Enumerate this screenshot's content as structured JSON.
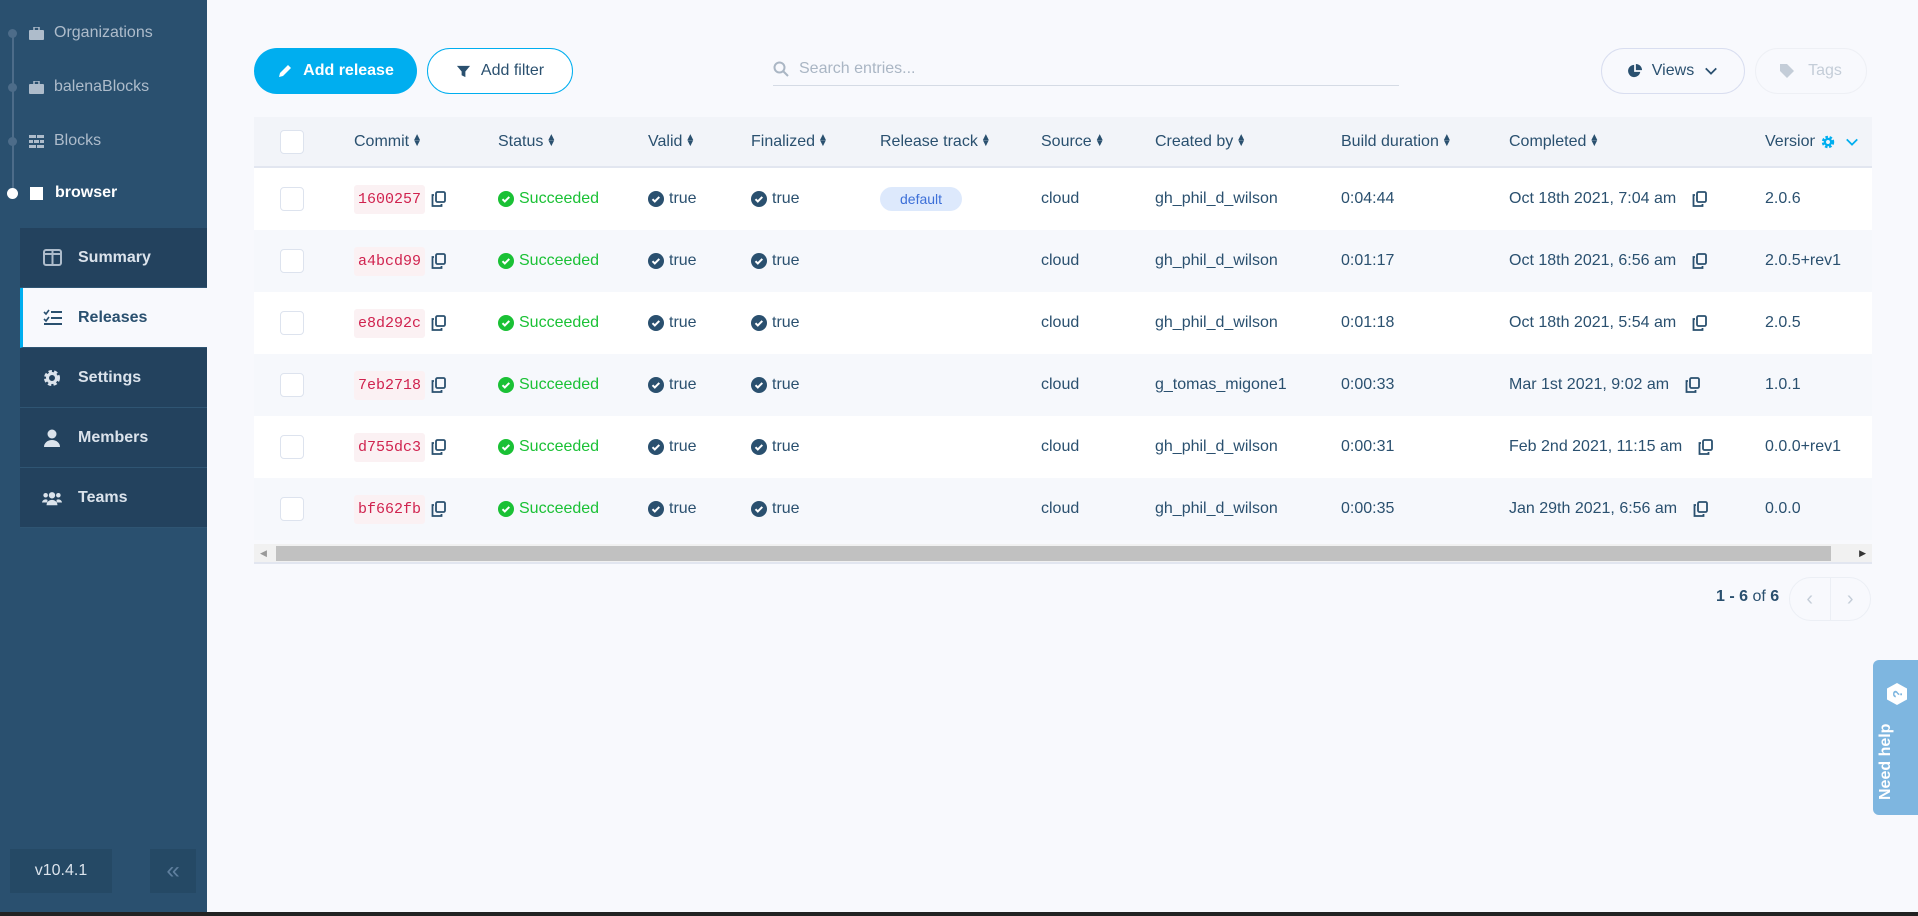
{
  "sidebar": {
    "breadcrumbs": [
      {
        "label": "Organizations",
        "icon": "briefcase-icon"
      },
      {
        "label": "balenaBlocks",
        "icon": "briefcase-icon"
      },
      {
        "label": "Blocks",
        "icon": "blocks-icon"
      },
      {
        "label": "browser",
        "icon": "square-icon",
        "active": true
      }
    ],
    "nav": [
      {
        "label": "Summary",
        "icon": "columns-icon"
      },
      {
        "label": "Releases",
        "icon": "list-check-icon",
        "active": true
      },
      {
        "label": "Settings",
        "icon": "gear-icon"
      },
      {
        "label": "Members",
        "icon": "user-icon"
      },
      {
        "label": "Teams",
        "icon": "users-icon"
      }
    ],
    "version": "v10.4.1",
    "collapse_icon": "chevrons-left-icon"
  },
  "toolbar": {
    "add_release": "Add release",
    "add_filter": "Add filter",
    "search_placeholder": "Search entries...",
    "views": "Views",
    "tags": "Tags"
  },
  "table": {
    "columns": [
      "Commit",
      "Status",
      "Valid",
      "Finalized",
      "Release track",
      "Source",
      "Created by",
      "Build duration",
      "Completed",
      "Version"
    ],
    "rows": [
      {
        "commit": "1600257",
        "status": "Succeeded",
        "valid": "true",
        "finalized": "true",
        "track": "default",
        "source": "cloud",
        "created_by": "gh_phil_d_wilson",
        "duration": "0:04:44",
        "completed": "Oct 18th 2021, 7:04 am",
        "version": "2.0.6"
      },
      {
        "commit": "a4bcd99",
        "status": "Succeeded",
        "valid": "true",
        "finalized": "true",
        "track": "",
        "source": "cloud",
        "created_by": "gh_phil_d_wilson",
        "duration": "0:01:17",
        "completed": "Oct 18th 2021, 6:56 am",
        "version": "2.0.5+rev1"
      },
      {
        "commit": "e8d292c",
        "status": "Succeeded",
        "valid": "true",
        "finalized": "true",
        "track": "",
        "source": "cloud",
        "created_by": "gh_phil_d_wilson",
        "duration": "0:01:18",
        "completed": "Oct 18th 2021, 5:54 am",
        "version": "2.0.5"
      },
      {
        "commit": "7eb2718",
        "status": "Succeeded",
        "valid": "true",
        "finalized": "true",
        "track": "",
        "source": "cloud",
        "created_by": "g_tomas_migone1",
        "duration": "0:00:33",
        "completed": "Mar 1st 2021, 9:02 am",
        "version": "1.0.1"
      },
      {
        "commit": "d755dc3",
        "status": "Succeeded",
        "valid": "true",
        "finalized": "true",
        "track": "",
        "source": "cloud",
        "created_by": "gh_phil_d_wilson",
        "duration": "0:00:31",
        "completed": "Feb 2nd 2021, 11:15 am",
        "version": "0.0.0+rev1"
      },
      {
        "commit": "bf662fb",
        "status": "Succeeded",
        "valid": "true",
        "finalized": "true",
        "track": "",
        "source": "cloud",
        "created_by": "gh_phil_d_wilson",
        "duration": "0:00:35",
        "completed": "Jan 29th 2021, 6:56 am",
        "version": "0.0.0"
      }
    ]
  },
  "pagination": {
    "range": "1 - 6",
    "of_label": "of",
    "total": "6"
  },
  "help": {
    "label": "Need help"
  },
  "colors": {
    "accent": "#00aeef",
    "sidebar": "#2a506f",
    "success": "#1ac135",
    "commit": "#d0234f"
  }
}
